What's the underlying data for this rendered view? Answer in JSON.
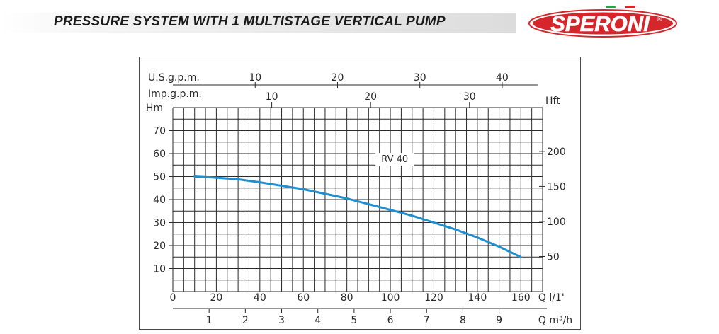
{
  "header": {
    "title": "PRESSURE SYSTEM WITH 1 MULTISTAGE VERTICAL PUMP",
    "logo_text": "SPERONI",
    "logo_mark": "®"
  },
  "colors": {
    "curve": "#1f8fd0",
    "grid": "#2a2a2a",
    "logo_red": "#d5262b",
    "flag_green": "#2e9e48"
  },
  "chart_data": {
    "type": "line",
    "series": [
      {
        "name": "RV 40",
        "x": [
          10,
          20,
          30,
          40,
          50,
          60,
          70,
          80,
          90,
          100,
          110,
          120,
          130,
          140,
          150,
          160
        ],
        "y": [
          50,
          49.5,
          48.8,
          47.5,
          46,
          44.5,
          42.5,
          40.5,
          38,
          35.5,
          33,
          30,
          27,
          23.5,
          19.5,
          15
        ]
      }
    ],
    "x_primary": {
      "label": "Q l/1'",
      "ticks": [
        0,
        20,
        40,
        60,
        80,
        100,
        120,
        140,
        160
      ],
      "xlim": [
        0,
        170
      ]
    },
    "x_m3h": {
      "label": "Q m³/h",
      "ticks": [
        "1",
        "2",
        "3",
        "4",
        "5",
        "6",
        "7",
        "8",
        "9"
      ]
    },
    "x_usgpm": {
      "label": "U.S.g.p.m.",
      "ticks": [
        "10",
        "20",
        "30",
        "40"
      ]
    },
    "x_impgpm": {
      "label": "Imp.g.p.m.",
      "ticks": [
        "10",
        "20",
        "30"
      ]
    },
    "y_left": {
      "label": "Hm",
      "ticks": [
        10,
        20,
        30,
        40,
        50,
        60,
        70
      ],
      "ylim": [
        0,
        80
      ]
    },
    "y_right": {
      "label": "Hft",
      "ticks": [
        50,
        100,
        150,
        200
      ]
    },
    "annotation": "RV 40",
    "grid": true
  }
}
